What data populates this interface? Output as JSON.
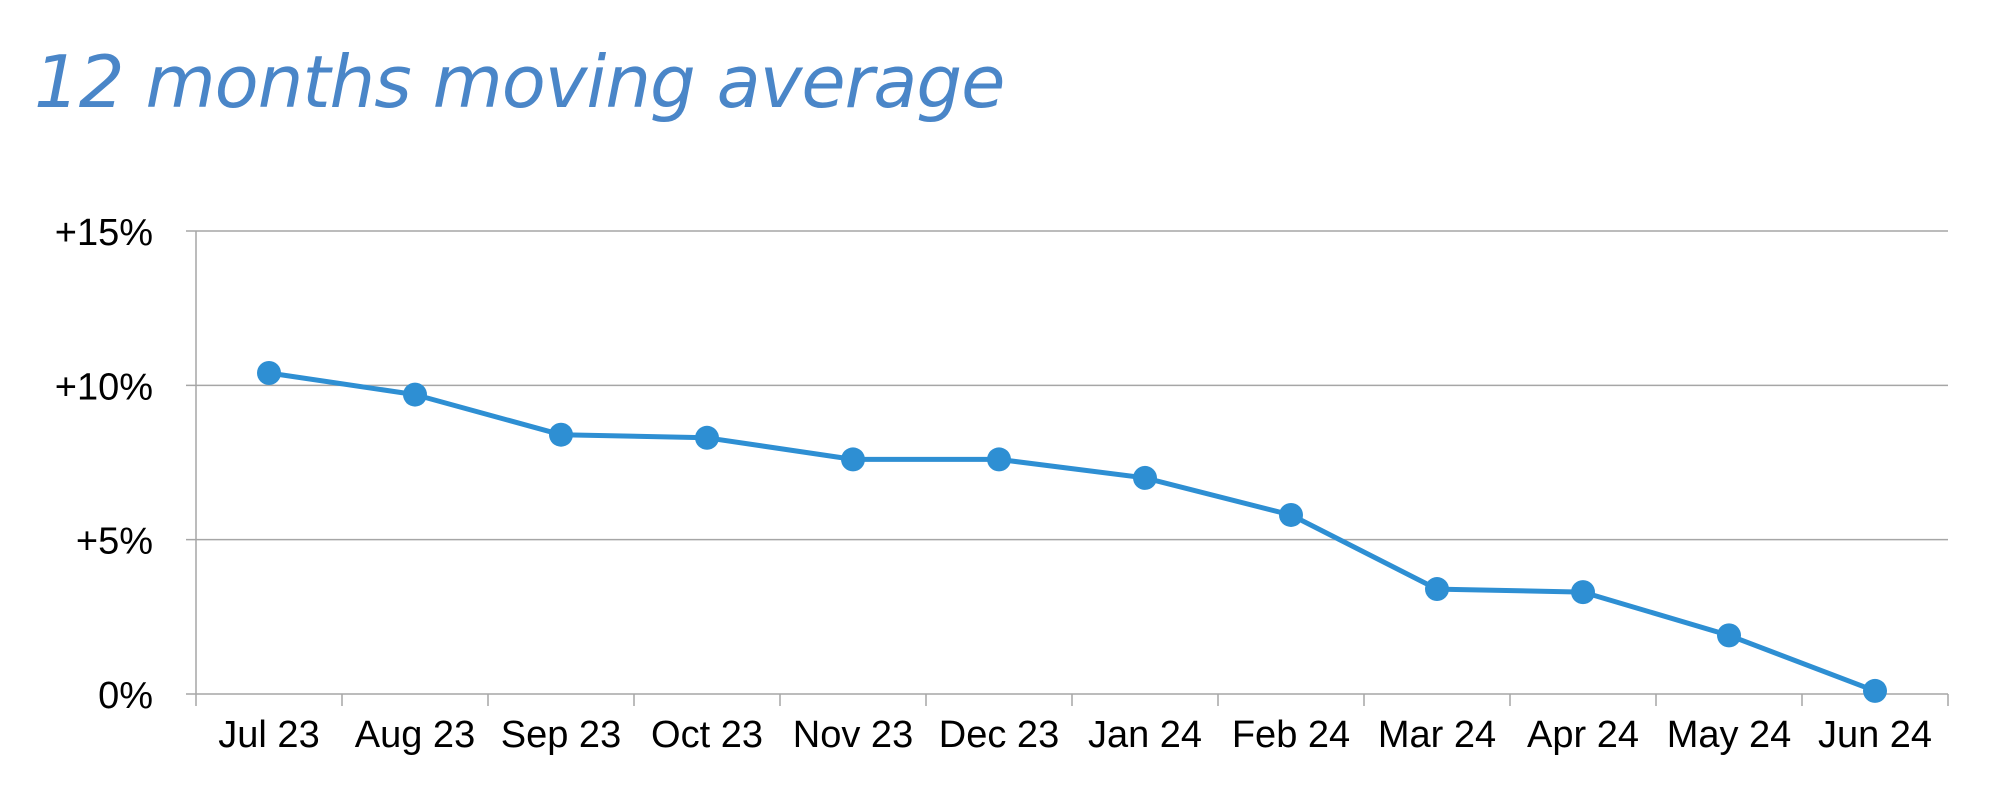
{
  "chart_data": {
    "type": "line",
    "title": "12 months moving average",
    "xlabel": "",
    "ylabel": "",
    "categories": [
      "Jul 23",
      "Aug 23",
      "Sep 23",
      "Oct 23",
      "Nov 23",
      "Dec 23",
      "Jan 24",
      "Feb 24",
      "Mar 24",
      "Apr 24",
      "May 24",
      "Jun 24"
    ],
    "series": [
      {
        "values": [
          10.4,
          9.7,
          8.4,
          8.3,
          7.6,
          7.6,
          7.0,
          5.8,
          3.4,
          3.3,
          1.9,
          0.1
        ]
      }
    ],
    "ylim": [
      0,
      15
    ],
    "yticks": [
      0,
      5,
      10,
      15
    ],
    "ytick_labels": [
      "0%",
      "+5%",
      "+10%",
      "+15%"
    ],
    "grid": true,
    "legend": "none"
  },
  "colors": {
    "title": "#4a86c8",
    "line": "#2e8fd3",
    "grid": "#a6a6a6",
    "axis": "#a6a6a6",
    "text": "#000000"
  }
}
